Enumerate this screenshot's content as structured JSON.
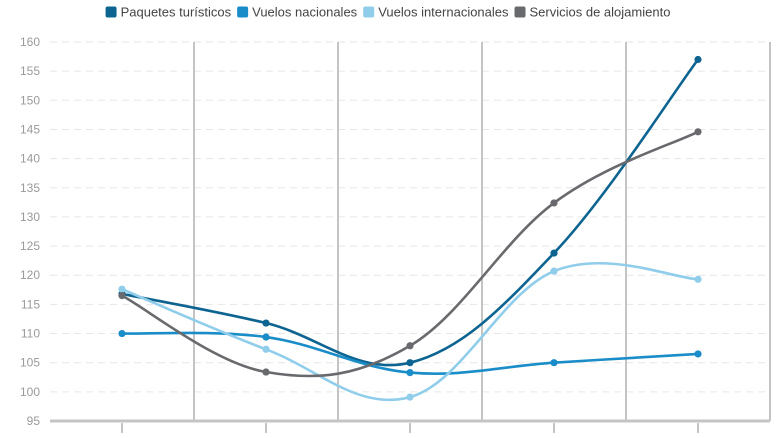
{
  "chart_data": {
    "type": "line",
    "title": "",
    "xlabel": "",
    "ylabel": "",
    "x": [
      1,
      2,
      3,
      4,
      5
    ],
    "ylim": [
      95,
      160
    ],
    "yticks": [
      95,
      100,
      105,
      110,
      115,
      120,
      125,
      130,
      135,
      140,
      145,
      150,
      155,
      160
    ],
    "grid": true,
    "legend_position": "top",
    "series": [
      {
        "name": "Paquetes turísticos",
        "color": "#0e6491",
        "values": [
          116.8,
          111.8,
          105.0,
          123.8,
          157.0
        ]
      },
      {
        "name": "Vuelos nacionales",
        "color": "#1a8dc9",
        "values": [
          110.0,
          109.4,
          103.3,
          105.0,
          106.5
        ]
      },
      {
        "name": "Vuelos internacionales",
        "color": "#8fcdeb",
        "values": [
          117.6,
          107.3,
          99.1,
          120.7,
          119.3
        ]
      },
      {
        "name": "Servicios de alojamiento",
        "color": "#696a6d",
        "values": [
          116.5,
          103.4,
          107.9,
          132.4,
          144.6
        ]
      }
    ]
  }
}
